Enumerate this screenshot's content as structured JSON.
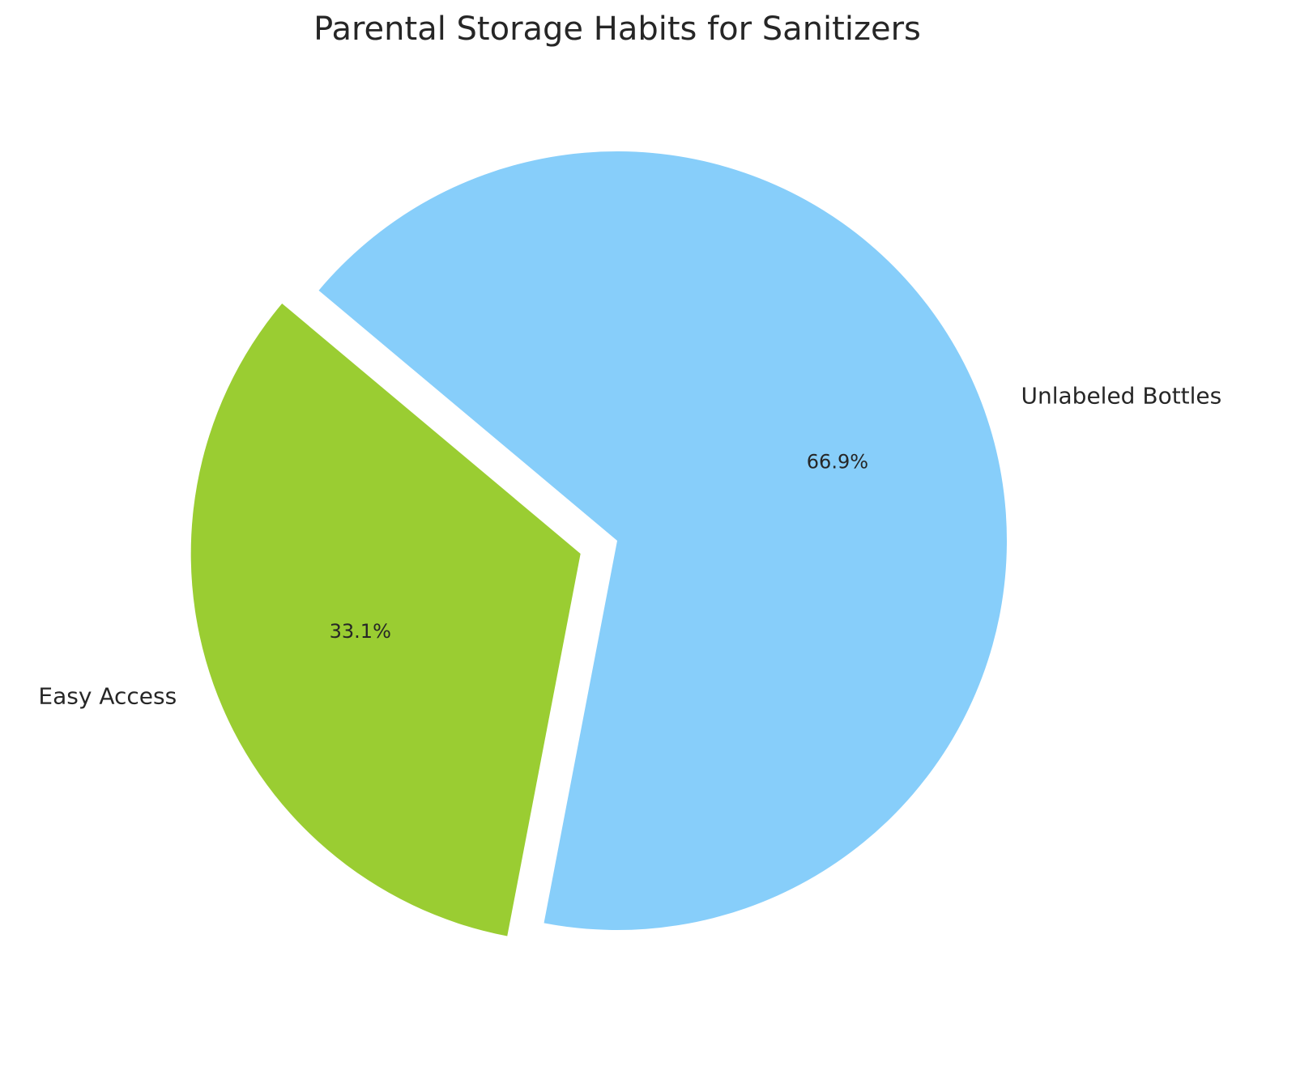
{
  "chart_data": {
    "type": "pie",
    "title": "Parental Storage Habits for Sanitizers",
    "categories": [
      "Easy Access",
      "Unlabeled Bottles"
    ],
    "values": [
      33.1,
      66.9
    ],
    "value_labels": [
      "33.1%",
      "66.9%"
    ],
    "colors": [
      "#9acd32",
      "#87cefa"
    ],
    "explode": [
      0.1,
      0
    ]
  }
}
